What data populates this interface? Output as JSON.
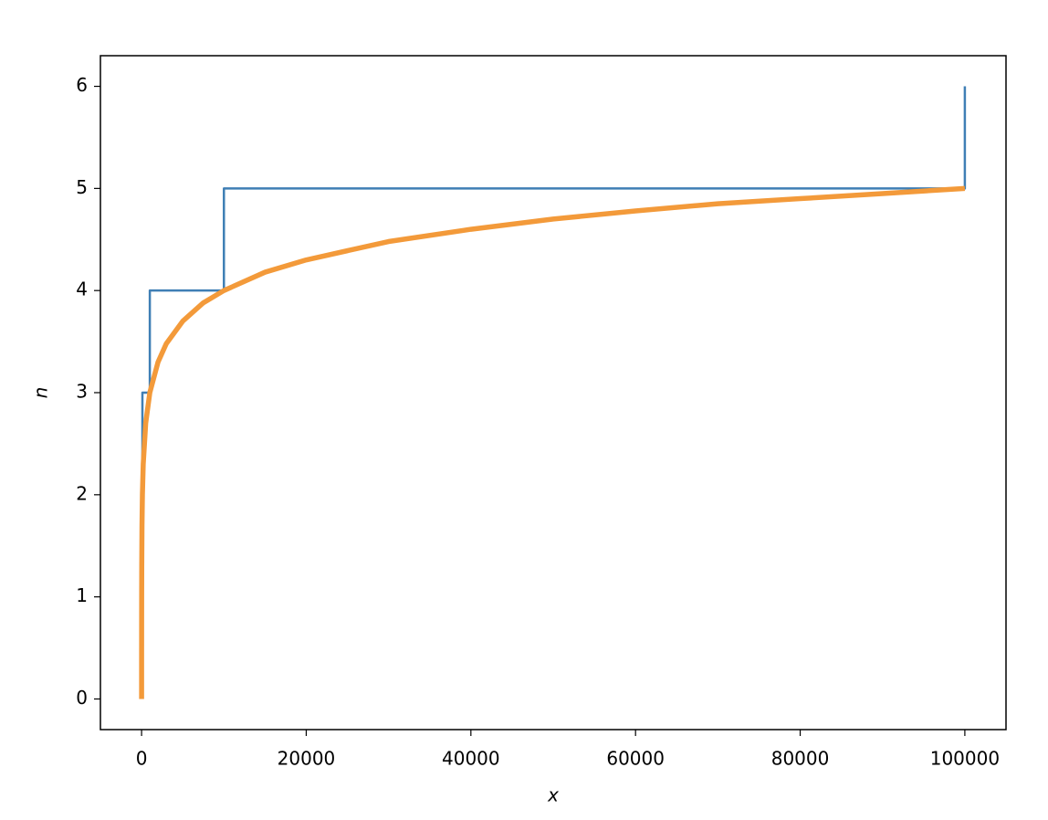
{
  "chart_data": {
    "type": "line",
    "xlabel": "x",
    "ylabel": "n",
    "xlim": [
      -5000,
      105000
    ],
    "ylim": [
      -0.3,
      6.3
    ],
    "xticks": [
      0,
      20000,
      40000,
      60000,
      80000,
      100000
    ],
    "yticks": [
      0,
      1,
      2,
      3,
      4,
      5,
      6
    ],
    "series": [
      {
        "color": "#3f7fb5",
        "step": "post",
        "width": 2.5,
        "x": [
          1,
          10,
          100,
          1000,
          10000,
          100000
        ],
        "values": [
          1,
          2,
          3,
          4,
          5,
          6
        ]
      },
      {
        "color": "#f39a3a",
        "width": 5.5,
        "x": [
          1,
          2,
          5,
          10,
          20,
          50,
          100,
          200,
          500,
          1000,
          2000,
          3000,
          5000,
          7500,
          10000,
          15000,
          20000,
          30000,
          40000,
          50000,
          60000,
          70000,
          80000,
          90000,
          100000
        ],
        "values": [
          0,
          0.3,
          0.7,
          1,
          1.3,
          1.7,
          2,
          2.3,
          2.7,
          3,
          3.3,
          3.48,
          3.7,
          3.88,
          4,
          4.18,
          4.3,
          4.48,
          4.6,
          4.7,
          4.78,
          4.85,
          4.9,
          4.95,
          5
        ]
      }
    ]
  }
}
